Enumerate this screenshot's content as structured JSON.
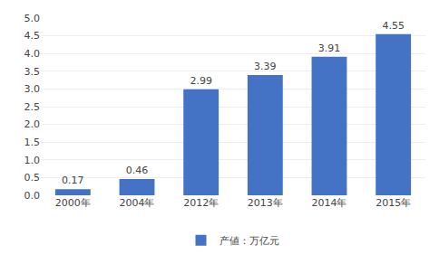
{
  "chart_data": {
    "type": "bar",
    "categories": [
      "2000年",
      "2004年",
      "2012年",
      "2013年",
      "2014年",
      "2015年"
    ],
    "series": [
      {
        "name": "产値：万亿元",
        "color": "#4472C4",
        "values": [
          0.17,
          0.46,
          2.99,
          3.39,
          3.91,
          4.55
        ]
      }
    ],
    "ylim": [
      0,
      5
    ],
    "yticks": [
      {
        "value": 0,
        "label": "0.0"
      },
      {
        "value": 0.5,
        "label": "0.5"
      },
      {
        "value": 1.0,
        "label": "1.0"
      },
      {
        "value": 1.5,
        "label": "1.5"
      },
      {
        "value": 2.0,
        "label": "2.0"
      },
      {
        "value": 2.5,
        "label": "2.5"
      },
      {
        "value": 3.0,
        "label": "3.0"
      },
      {
        "value": 3.5,
        "label": "3.5"
      },
      {
        "value": 4.0,
        "label": "4.0"
      },
      {
        "value": 4.5,
        "label": "4.5"
      },
      {
        "value": 5.0,
        "label": "5.0"
      }
    ],
    "grid": true,
    "legend": "bottom",
    "data_labels": true
  }
}
